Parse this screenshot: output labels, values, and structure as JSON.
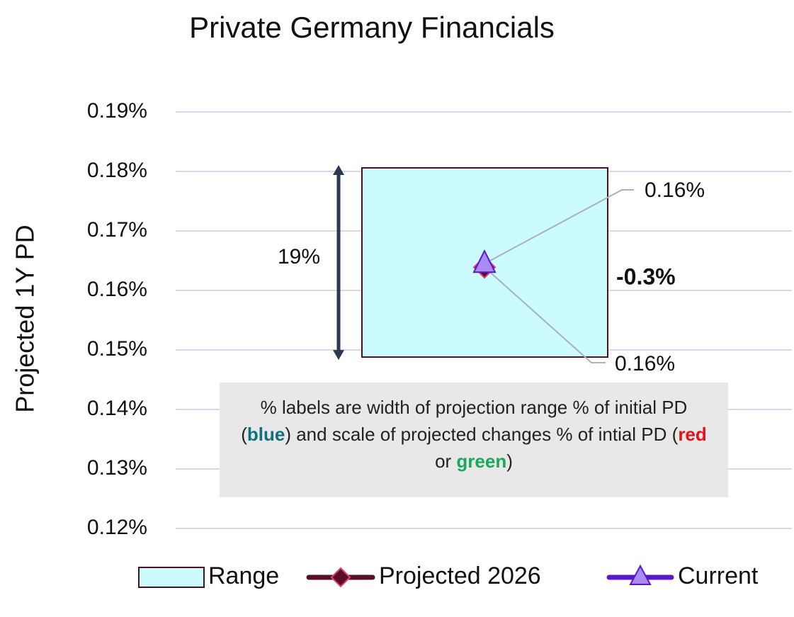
{
  "chart_data": {
    "type": "range",
    "title": "Private Germany Financials",
    "y_label": "Projected 1Y PD",
    "ylim": [
      0.12,
      0.19
    ],
    "yticks": [
      {
        "value": 0.12,
        "label": "0.12%"
      },
      {
        "value": 0.13,
        "label": "0.13%"
      },
      {
        "value": 0.14,
        "label": "0.14%"
      },
      {
        "value": 0.15,
        "label": "0.15%"
      },
      {
        "value": 0.16,
        "label": "0.16%"
      },
      {
        "value": 0.17,
        "label": "0.17%"
      },
      {
        "value": 0.18,
        "label": "0.18%"
      },
      {
        "value": 0.19,
        "label": "0.19%"
      }
    ],
    "grid": true,
    "series": [
      {
        "name": "Range",
        "color": "#ccfbfe",
        "edge": "#4a0f1f",
        "low": 0.1488,
        "high": 0.1806
      },
      {
        "name": "Projected 2026",
        "color": "#5a0f26",
        "edge": "#e0407a",
        "values": [
          0.1639
        ],
        "value_labels": [
          "0.16%"
        ]
      },
      {
        "name": "Current",
        "color": "#5b17c9",
        "edge": "#a98cf3",
        "values": [
          0.1645
        ],
        "value_labels": [
          "0.16%"
        ]
      }
    ],
    "range_width_label": "19%",
    "change_label": {
      "text": "-0.3%",
      "color": "#1aa85a"
    },
    "note": [
      {
        "text": "% labels are width of projection range % of initial PD ("
      },
      {
        "text": "blue",
        "color": "#0f7080"
      },
      {
        "text": ") and scale of projected changes % of intial PD ("
      },
      {
        "text": "red",
        "color": "#e8101a"
      },
      {
        "text": " or "
      },
      {
        "text": "green",
        "color": "#1aa85a"
      },
      {
        "text": ")"
      }
    ]
  }
}
